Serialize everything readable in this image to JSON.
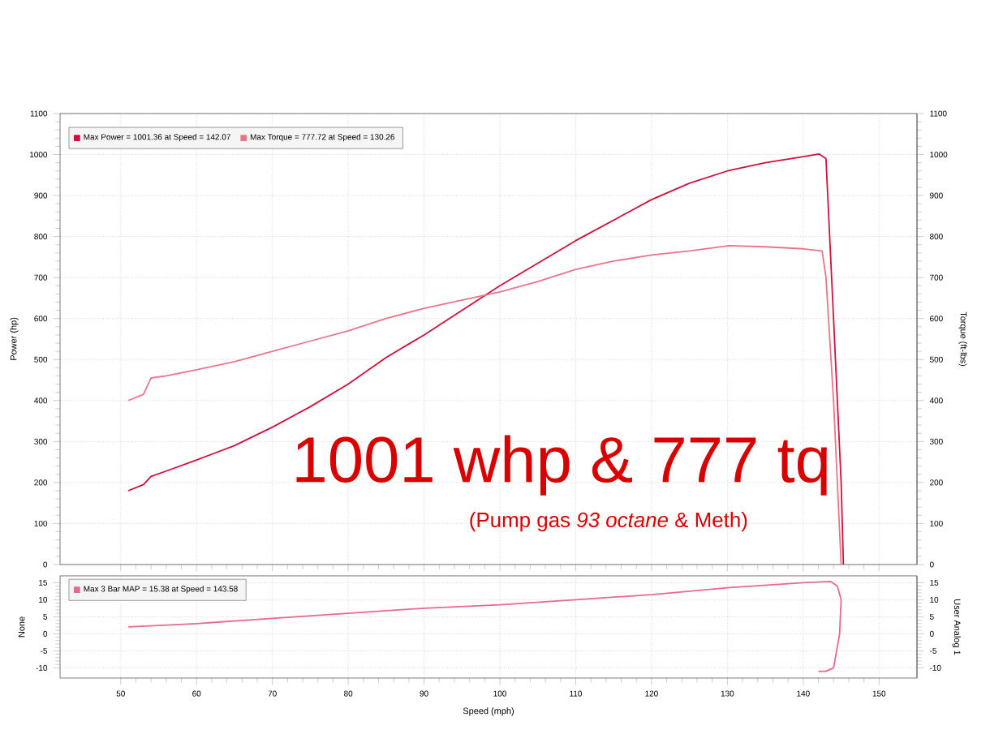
{
  "chart_data": [
    {
      "type": "line",
      "ylabel": "Power (hp)",
      "y2label": "Torque (ft-lbs)",
      "x": [
        51,
        53,
        54,
        56,
        60,
        65,
        70,
        75,
        80,
        85,
        90,
        95,
        100,
        105,
        110,
        115,
        120,
        125,
        130,
        135,
        140,
        142.07,
        143,
        144,
        145,
        145.3
      ],
      "series": [
        {
          "name": "Max Power = 1001.36 at Speed = 142.07",
          "color": "#d0103a",
          "values": [
            180,
            195,
            215,
            228,
            255,
            290,
            335,
            385,
            440,
            505,
            560,
            620,
            680,
            735,
            790,
            840,
            890,
            930,
            960,
            980,
            995,
            1001.36,
            990,
            600,
            200,
            0
          ]
        },
        {
          "name": "Max Torque = 777.72 at Speed = 130.26",
          "color": "#e8768a",
          "axis": "y2",
          "x": [
            51,
            53,
            54,
            56,
            60,
            65,
            70,
            75,
            80,
            85,
            90,
            95,
            100,
            105,
            110,
            115,
            120,
            125,
            130.26,
            135,
            140,
            142.5,
            143,
            144,
            145
          ],
          "values": [
            400,
            415,
            455,
            460,
            475,
            495,
            520,
            545,
            570,
            600,
            625,
            645,
            665,
            690,
            720,
            740,
            755,
            765,
            777.72,
            775,
            770,
            765,
            700,
            400,
            0
          ]
        }
      ],
      "xlim": [
        42,
        155
      ],
      "xticks": [
        50,
        60,
        70,
        80,
        90,
        100,
        110,
        120,
        130,
        140,
        150
      ],
      "ylim": [
        0,
        1100
      ],
      "yticks": [
        0,
        100,
        200,
        300,
        400,
        500,
        600,
        700,
        800,
        900,
        1000,
        1100
      ],
      "y2lim": [
        0,
        1100
      ],
      "y2ticks": [
        0,
        100,
        200,
        300,
        400,
        500,
        600,
        700,
        800,
        900,
        1000,
        1100
      ],
      "tick_labels": "y",
      "grid": true,
      "legend": "top left",
      "marker": "none",
      "line_style": "solid",
      "annotations": [
        "1001 whp & 777 tq",
        "(Pump gas *93 octane* & Meth)"
      ]
    },
    {
      "type": "line",
      "xlabel": "Speed (mph)",
      "ylabel": "None",
      "y2label": "User Analog 1",
      "x": [
        51,
        60,
        70,
        80,
        90,
        100,
        110,
        120,
        130,
        140,
        143.58,
        144.5,
        145,
        144.8,
        144,
        143,
        142
      ],
      "series": [
        {
          "name": "Max 3 Bar MAP = 15.38 at Speed = 143.58",
          "color": "#e8698a",
          "values": [
            2,
            3,
            4.5,
            6,
            7.5,
            8.5,
            10,
            11.5,
            13.5,
            15,
            15.38,
            14,
            10,
            0,
            -10,
            -11,
            -11
          ]
        }
      ],
      "xlim": [
        42,
        155
      ],
      "xticks": [
        50,
        60,
        70,
        80,
        90,
        100,
        110,
        120,
        130,
        140,
        150
      ],
      "ylim": [
        -13,
        17
      ],
      "yticks": [
        -10,
        -5,
        0,
        5,
        10,
        15
      ],
      "y2lim": [
        -13,
        17
      ],
      "y2ticks": [
        -10,
        -5,
        0,
        5,
        10,
        15
      ],
      "grid": true,
      "legend": "top left",
      "marker": "none",
      "line_style": "solid"
    }
  ]
}
